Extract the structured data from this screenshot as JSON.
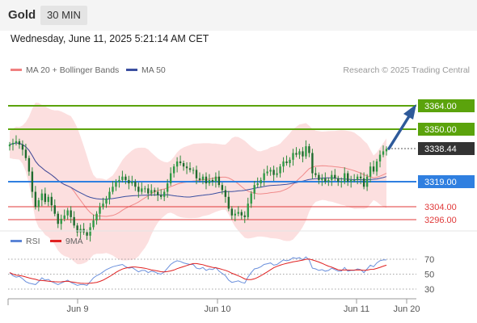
{
  "header": {
    "symbol": "Gold",
    "timeframe": "30 MIN"
  },
  "datetime": "Wednesday, June 11, 2025 5:21:14 AM CET",
  "legend": {
    "ma20": "MA 20 + Bollinger Bands",
    "ma50": "MA 50",
    "credit": "Research © 2025 Trading Central"
  },
  "colors": {
    "green": "#5ba30c",
    "blue": "#2f7fe0",
    "red": "#e03a3a",
    "candle": "#2d8a3a",
    "band": "#fbd9d9",
    "ma50": "#3b4fa0",
    "dark": "#333333",
    "arrow": "#2e5a9a"
  },
  "levels": {
    "r2": "3364.00",
    "r1": "3350.00",
    "last": "3338.44",
    "s1": "3319.00",
    "s2": "3304.00",
    "s3": "3296.00"
  },
  "rsi_legend": {
    "rsi": "RSI",
    "ma": "9MA"
  },
  "x_labels": [
    "Jun 9",
    "Jun 10",
    "Jun 11",
    "Jun 20"
  ],
  "chart_data": [
    {
      "type": "candlestick",
      "y_levels": [
        {
          "value": 3364.0,
          "style": "green"
        },
        {
          "value": 3350.0,
          "style": "green"
        },
        {
          "value": 3338.44,
          "style": "last"
        },
        {
          "value": 3319.0,
          "style": "blue"
        },
        {
          "value": 3304.0,
          "style": "red"
        },
        {
          "value": 3296.0,
          "style": "red"
        }
      ],
      "close": [
        3341,
        3342,
        3343,
        3341,
        3338,
        3333,
        3325,
        3313,
        3304,
        3308,
        3312,
        3307,
        3310,
        3305,
        3300,
        3294,
        3297,
        3299,
        3302,
        3298,
        3293,
        3289,
        3291,
        3289,
        3287,
        3292,
        3296,
        3300,
        3304,
        3306,
        3309,
        3313,
        3316,
        3319,
        3320,
        3322,
        3320,
        3318,
        3319,
        3316,
        3313,
        3315,
        3315,
        3312,
        3314,
        3313,
        3311,
        3310,
        3313,
        3318,
        3324,
        3328,
        3331,
        3330,
        3328,
        3327,
        3326,
        3326,
        3321,
        3320,
        3322,
        3318,
        3320,
        3319,
        3322,
        3317,
        3314,
        3310,
        3303,
        3299,
        3300,
        3301,
        3299,
        3298,
        3306,
        3312,
        3317,
        3318,
        3320,
        3324,
        3325,
        3326,
        3323,
        3324,
        3328,
        3331,
        3330,
        3332,
        3336,
        3335,
        3337,
        3334,
        3340,
        3336,
        3324,
        3323,
        3320,
        3321,
        3319,
        3320,
        3323,
        3321,
        3319,
        3319,
        3324,
        3319,
        3320,
        3320,
        3322,
        3321,
        3316,
        3322,
        3328,
        3325,
        3331,
        3335,
        3337,
        3338.44
      ],
      "rsi": [
        52,
        48,
        46,
        47,
        44,
        40,
        38,
        37,
        36,
        40,
        45,
        42,
        43,
        40,
        38,
        36,
        38,
        40,
        42,
        39,
        37,
        35,
        36,
        36,
        35,
        40,
        45,
        48,
        50,
        53,
        56,
        58,
        60,
        61,
        62,
        63,
        60,
        58,
        59,
        56,
        53,
        55,
        55,
        52,
        54,
        53,
        51,
        50,
        53,
        58,
        63,
        66,
        68,
        67,
        65,
        64,
        63,
        63,
        58,
        57,
        59,
        55,
        57,
        56,
        59,
        54,
        51,
        48,
        42,
        39,
        40,
        41,
        39,
        38,
        46,
        52,
        57,
        58,
        60,
        63,
        64,
        65,
        62,
        63,
        66,
        69,
        68,
        69,
        72,
        71,
        72,
        69,
        73,
        69,
        58,
        57,
        55,
        56,
        54,
        55,
        58,
        56,
        54,
        54,
        59,
        54,
        55,
        55,
        57,
        56,
        52,
        57,
        62,
        60,
        65,
        68,
        69,
        69
      ],
      "rsi_ticks": [
        70,
        50,
        30
      ]
    }
  ]
}
